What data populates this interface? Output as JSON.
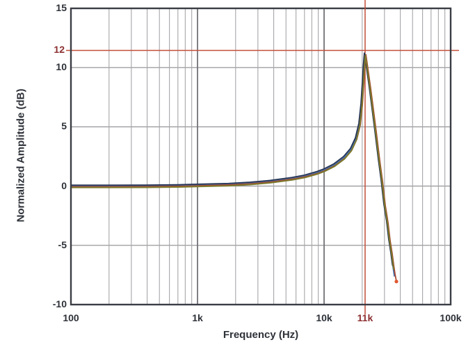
{
  "chart_data": {
    "type": "line",
    "title": "",
    "xlabel": "Frequency (Hz)",
    "ylabel": "Normalized Amplitude (dB)",
    "x_scale": "log",
    "x_log_range": [
      2,
      5
    ],
    "x_ticks": [
      {
        "label": "100",
        "logf": 2
      },
      {
        "label": "1k",
        "logf": 3
      },
      {
        "label": "10k",
        "logf": 4
      },
      {
        "label": "100k",
        "logf": 5
      }
    ],
    "x_minor_multiples": [
      2,
      3,
      4,
      5,
      6,
      7,
      8,
      9
    ],
    "ylim": [
      -10,
      15
    ],
    "y_ticks": [
      {
        "label": "15",
        "db": 15
      },
      {
        "label": "10",
        "db": 10
      },
      {
        "label": "5",
        "db": 5
      },
      {
        "label": "0",
        "db": 0
      },
      {
        "label": "-5",
        "db": -5
      },
      {
        "label": "-10",
        "db": -10
      }
    ],
    "y_gridlines_db": [
      10,
      5,
      0,
      -5
    ],
    "grid": true,
    "legend": "none",
    "crosshair": {
      "x_label": "11k",
      "y_label": "12",
      "x_logf": 4.324,
      "y_db": 11.45,
      "meaning": "resonant peak marker: +12 dB at 11 kHz"
    },
    "base_points_logf_db": [
      [
        2.0,
        0
      ],
      [
        2.3,
        0
      ],
      [
        2.6,
        0.01
      ],
      [
        2.85,
        0.04
      ],
      [
        3.0,
        0.08
      ],
      [
        3.25,
        0.15
      ],
      [
        3.42,
        0.25
      ],
      [
        3.58,
        0.4
      ],
      [
        3.75,
        0.65
      ],
      [
        3.85,
        0.85
      ],
      [
        3.95,
        1.15
      ],
      [
        4.0,
        1.35
      ],
      [
        4.08,
        1.78
      ],
      [
        4.16,
        2.42
      ],
      [
        4.214,
        3.1
      ],
      [
        4.253,
        4.0
      ],
      [
        4.28,
        5.2
      ],
      [
        4.297,
        6.9
      ],
      [
        4.308,
        8.7
      ],
      [
        4.316,
        10.1
      ],
      [
        4.324,
        11.15
      ],
      [
        4.332,
        10.6
      ],
      [
        4.345,
        9.6
      ],
      [
        4.362,
        8.3
      ],
      [
        4.379,
        6.9
      ],
      [
        4.407,
        4.56
      ],
      [
        4.434,
        2.2
      ],
      [
        4.456,
        0.45
      ],
      [
        4.478,
        -1.6
      ],
      [
        4.5,
        -3.07
      ],
      [
        4.516,
        -4.54
      ],
      [
        4.533,
        -5.7
      ],
      [
        4.544,
        -6.6
      ],
      [
        4.555,
        -7.4
      ],
      [
        4.566,
        -8.05
      ]
    ],
    "series": [
      {
        "name": "trace-gray",
        "color": "#9a9c9e",
        "width": 1.7,
        "dx": 0.0,
        "dy": 0.03,
        "end_db": -5.7
      },
      {
        "name": "trace-blue",
        "color": "#4272b1",
        "width": 1.7,
        "dx": -0.003,
        "dy": -0.02,
        "end_db": -7.6
      },
      {
        "name": "trace-navy",
        "color": "#253354",
        "width": 1.7,
        "dx": -0.006,
        "dy": 0.08,
        "end_db": -6.7
      },
      {
        "name": "trace-red",
        "color": "#aa4228",
        "width": 1.7,
        "dx": 0.006,
        "dy": -0.05,
        "end_db": -8.05,
        "end_marker_color": "#e0572f"
      },
      {
        "name": "trace-olive",
        "color": "#7d7a2e",
        "width": 2.0,
        "dx": 0.002,
        "dy": -0.12,
        "end_db": -7.0
      }
    ],
    "colors": {
      "crosshair_line": "#c24e38",
      "crosshair_label": "#8c2f31",
      "frame": "#3a3d44",
      "grid_major": "#717277",
      "grid_minor": "#a6a6a9",
      "grid_horizontal": "#8b8b8f",
      "text": "#2d3138",
      "background": "#ffffff"
    }
  }
}
